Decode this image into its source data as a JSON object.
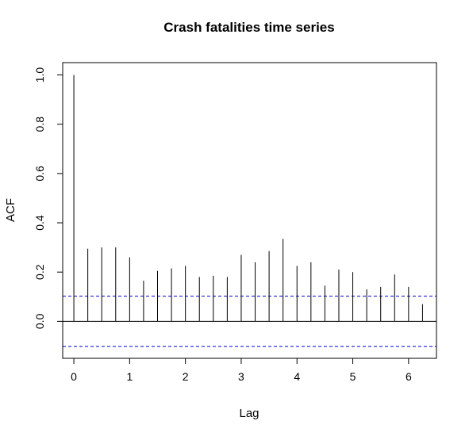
{
  "chart_data": {
    "type": "acf",
    "title": "Crash fatalities time series",
    "xlabel": "Lag",
    "ylabel": "ACF",
    "xlim": [
      -0.2,
      6.5
    ],
    "ylim": [
      -0.15,
      1.05
    ],
    "x_ticks": [
      0,
      1,
      2,
      3,
      4,
      5,
      6
    ],
    "y_ticks": [
      0.0,
      0.2,
      0.4,
      0.6,
      0.8,
      1.0
    ],
    "y_tick_labels": [
      "0.0",
      "0.2",
      "0.4",
      "0.6",
      "0.8",
      "1.0"
    ],
    "lags": [
      0,
      0.25,
      0.5,
      0.75,
      1.0,
      1.25,
      1.5,
      1.75,
      2.0,
      2.25,
      2.5,
      2.75,
      3.0,
      3.25,
      3.5,
      3.75,
      4.0,
      4.25,
      4.5,
      4.75,
      5.0,
      5.25,
      5.5,
      5.75,
      6.0,
      6.25
    ],
    "acf": [
      1.0,
      0.295,
      0.3,
      0.3,
      0.26,
      0.165,
      0.205,
      0.215,
      0.225,
      0.18,
      0.185,
      0.18,
      0.27,
      0.24,
      0.285,
      0.335,
      0.225,
      0.24,
      0.145,
      0.21,
      0.2,
      0.13,
      0.14,
      0.19,
      0.14,
      0.07
    ],
    "confidence_bounds": [
      0.102,
      -0.102
    ],
    "zero_line": 0,
    "colors": {
      "spike": "#000000",
      "bound": "#0000cc",
      "zero": "#000000",
      "frame": "#000000"
    }
  }
}
